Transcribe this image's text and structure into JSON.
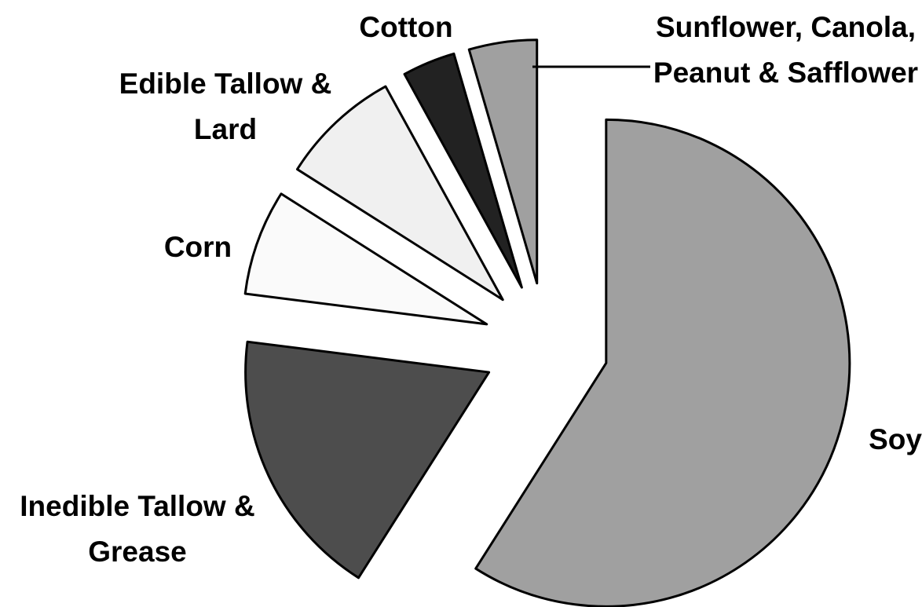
{
  "chart_data": {
    "type": "pie",
    "categories": [
      "Soy",
      "Inedible Tallow & Grease",
      "Corn",
      "Edible Tallow & Lard",
      "Cotton",
      "Sunflower, Canola, Peanut & Safflower"
    ],
    "values": [
      59,
      18,
      7,
      8,
      3.5,
      4.5
    ],
    "colors": [
      "#a0a0a0",
      "#4d4d4d",
      "#fafafa",
      "#f0f0f0",
      "#222222",
      "#a0a0a0"
    ],
    "start_angle": 0,
    "direction": "clockwise"
  }
}
